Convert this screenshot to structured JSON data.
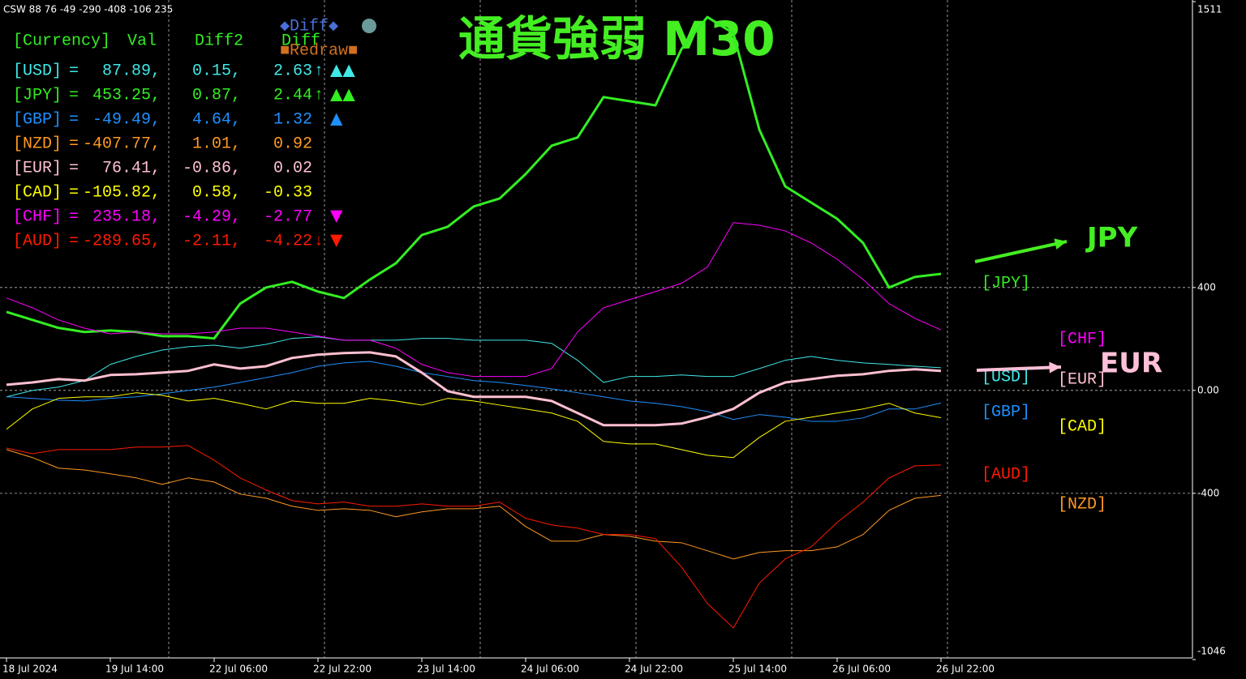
{
  "chart_data": {
    "type": "line",
    "title": "通貨強弱 M30",
    "subtitle": "CSW 88 76 -49 -290 -408 -106 235",
    "annotations": [
      {
        "text": "JPY",
        "color": "#44ee22"
      },
      {
        "text": "EUR",
        "color": "#ffc0d8"
      }
    ],
    "categories": [
      "18 Jul 2024",
      null,
      null,
      null,
      "19 Jul 14:00",
      null,
      null,
      null,
      "22 Jul 06:00",
      null,
      null,
      null,
      "22 Jul 22:00",
      null,
      null,
      null,
      "23 Jul 14:00",
      null,
      null,
      null,
      "24 Jul 06:00",
      null,
      null,
      null,
      "24 Jul 22:00",
      null,
      null,
      null,
      "25 Jul 14:00",
      null,
      null,
      null,
      "26 Jul 06:00",
      null,
      null,
      null,
      "26 Jul 22:00"
    ],
    "ylim": [
      -1046,
      1511
    ],
    "yticks": [
      1511,
      400,
      {
        "value": 0,
        "label": "0.00"
      },
      -400,
      -1046
    ],
    "grid": true,
    "series": [
      {
        "name": "[USD]",
        "color": "#40e8e8",
        "width": 1,
        "values": [
          -25,
          0,
          13,
          38,
          101,
          132,
          157,
          170,
          176,
          164,
          179,
          202,
          208,
          195,
          195,
          195,
          202,
          202,
          195,
          195,
          195,
          183,
          117,
          31,
          54,
          54,
          60,
          54,
          54,
          85,
          117,
          132,
          117,
          107,
          101,
          94,
          88
        ]
      },
      {
        "name": "[JPY]",
        "color": "#33ee22",
        "width": 3,
        "values": [
          305,
          274,
          243,
          227,
          233,
          227,
          211,
          211,
          202,
          337,
          400,
          422,
          384,
          359,
          431,
          494,
          604,
          636,
          715,
          746,
          841,
          951,
          983,
          1140,
          1124,
          1108,
          1326,
          1451,
          1388,
          1014,
          793,
          730,
          667,
          573,
          400,
          441,
          453
        ]
      },
      {
        "name": "[GBP]",
        "color": "#1e90ff",
        "width": 1,
        "values": [
          -25,
          -31,
          -38,
          -41,
          -31,
          -25,
          -13,
          0,
          13,
          31,
          50,
          69,
          94,
          107,
          113,
          94,
          69,
          54,
          38,
          31,
          19,
          6,
          -9,
          -25,
          -41,
          -50,
          -63,
          -82,
          -113,
          -94,
          -104,
          -120,
          -120,
          -107,
          -72,
          -72,
          -49
        ]
      },
      {
        "name": "[NZD]",
        "color": "#ff9922",
        "width": 1,
        "values": [
          -230,
          -261,
          -302,
          -309,
          -324,
          -340,
          -365,
          -340,
          -356,
          -403,
          -419,
          -450,
          -466,
          -460,
          -466,
          -491,
          -472,
          -460,
          -460,
          -450,
          -529,
          -586,
          -586,
          -560,
          -567,
          -586,
          -592,
          -623,
          -655,
          -630,
          -623,
          -623,
          -608,
          -560,
          -466,
          -419,
          -408
        ]
      },
      {
        "name": "[EUR]",
        "color": "#ffc0d0",
        "width": 3,
        "values": [
          22,
          31,
          44,
          38,
          60,
          63,
          69,
          76,
          101,
          85,
          94,
          126,
          139,
          145,
          148,
          132,
          69,
          -3,
          -25,
          -25,
          -25,
          -41,
          -88,
          -135,
          -135,
          -135,
          -129,
          -104,
          -72,
          -9,
          31,
          44,
          57,
          63,
          76,
          82,
          76
        ]
      },
      {
        "name": "[CAD]",
        "color": "#ffff00",
        "width": 1,
        "values": [
          -151,
          -72,
          -31,
          -25,
          -25,
          -9,
          -19,
          -41,
          -31,
          -50,
          -72,
          -41,
          -50,
          -50,
          -31,
          -41,
          -57,
          -31,
          -41,
          -57,
          -72,
          -88,
          -120,
          -198,
          -208,
          -208,
          -230,
          -252,
          -261,
          -183,
          -120,
          -104,
          -88,
          -72,
          -50,
          -88,
          -106
        ]
      },
      {
        "name": "[CHF]",
        "color": "#ff00ff",
        "width": 1,
        "values": [
          359,
          321,
          274,
          242,
          220,
          227,
          220,
          220,
          227,
          242,
          242,
          227,
          211,
          195,
          195,
          164,
          101,
          69,
          54,
          54,
          54,
          85,
          227,
          321,
          353,
          384,
          416,
          479,
          652,
          642,
          620,
          573,
          510,
          431,
          337,
          280,
          235
        ]
      },
      {
        "name": "[AUD]",
        "color": "#ff1a00",
        "width": 1,
        "values": [
          -224,
          -246,
          -230,
          -230,
          -230,
          -220,
          -220,
          -214,
          -271,
          -340,
          -387,
          -428,
          -441,
          -434,
          -450,
          -450,
          -441,
          -450,
          -450,
          -434,
          -497,
          -523,
          -535,
          -560,
          -560,
          -576,
          -686,
          -828,
          -923,
          -749,
          -655,
          -608,
          -513,
          -434,
          -340,
          -293,
          -290
        ]
      }
    ]
  },
  "panel": {
    "header": [
      "[Currency]",
      "Val",
      "Diff2",
      "Diff"
    ],
    "eq": "=",
    "rows": [
      {
        "val": "87.89,",
        "diff2": "0.15,",
        "diff": "2.63",
        "arrow": "↑",
        "icons": "▲▲"
      },
      {
        "val": "453.25,",
        "diff2": "0.87,",
        "diff": "2.44",
        "arrow": "↑",
        "icons": "▲▲"
      },
      {
        "val": "-49.49,",
        "diff2": "4.64,",
        "diff": "1.32",
        "icons": "▲"
      },
      {
        "val": "-407.77,",
        "diff2": "1.01,",
        "diff": "0.92"
      },
      {
        "val": "76.41,",
        "diff2": "-0.86,",
        "diff": "0.02"
      },
      {
        "val": "-105.82,",
        "diff2": "0.58,",
        "diff": "-0.33"
      },
      {
        "val": "235.18,",
        "diff2": "-4.29,",
        "diff": "-2.77",
        "icons": "▼"
      },
      {
        "val": "-289.65,",
        "diff2": "-2.11,",
        "diff": "-4.22",
        "arrow": "↓",
        "icons": "▼"
      }
    ]
  },
  "buttons": {
    "diff": "◆Diff◆",
    "redraw": "■Redraw■"
  }
}
